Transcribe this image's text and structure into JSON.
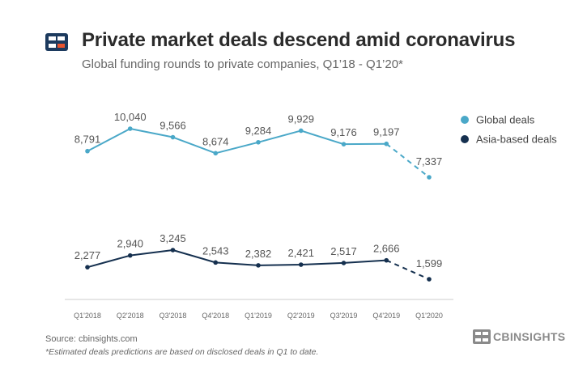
{
  "header": {
    "title": "Private market deals descend amid coronavirus",
    "subtitle": "Global funding rounds to private companies, Q1’18 - Q1’20*"
  },
  "footer": {
    "source": "Source: cbinsights.com",
    "footnote": "*Estimated deals predictions are based on disclosed deals in Q1 to date.",
    "brand": "CBINSIGHTS"
  },
  "colors": {
    "global": "#4aa8c8",
    "asia": "#15304f",
    "axis": "#cccccc",
    "logo_dark": "#1c3a5e",
    "logo_accent": "#e8542f"
  },
  "icons": {
    "logo": "cb-insights-logo-icon",
    "brand": "cb-insights-brand-icon"
  },
  "chart_data": {
    "type": "line",
    "title": "Private market deals descend amid coronavirus",
    "xlabel": "",
    "ylabel": "",
    "categories": [
      "Q1'2018",
      "Q2'2018",
      "Q3'2018",
      "Q4'2018",
      "Q1'2019",
      "Q2'2019",
      "Q3'2019",
      "Q4'2019",
      "Q1'2020"
    ],
    "ylim": [
      0,
      11000
    ],
    "grid": false,
    "legend_position": "top-right",
    "estimated_from_index": 7,
    "series": [
      {
        "name": "Global deals",
        "key": "global",
        "values": [
          8791,
          10040,
          9566,
          8674,
          9284,
          9929,
          9176,
          9197,
          7337
        ],
        "labels": [
          "8,791",
          "10,040",
          "9,566",
          "8,674",
          "9,284",
          "9,929",
          "9,176",
          "9,197",
          "7,337"
        ]
      },
      {
        "name": "Asia-based deals",
        "key": "asia",
        "values": [
          2277,
          2940,
          3245,
          2543,
          2382,
          2421,
          2517,
          2666,
          1599
        ],
        "labels": [
          "2,277",
          "2,940",
          "3,245",
          "2,543",
          "2,382",
          "2,421",
          "2,517",
          "2,666",
          "1,599"
        ]
      }
    ]
  }
}
